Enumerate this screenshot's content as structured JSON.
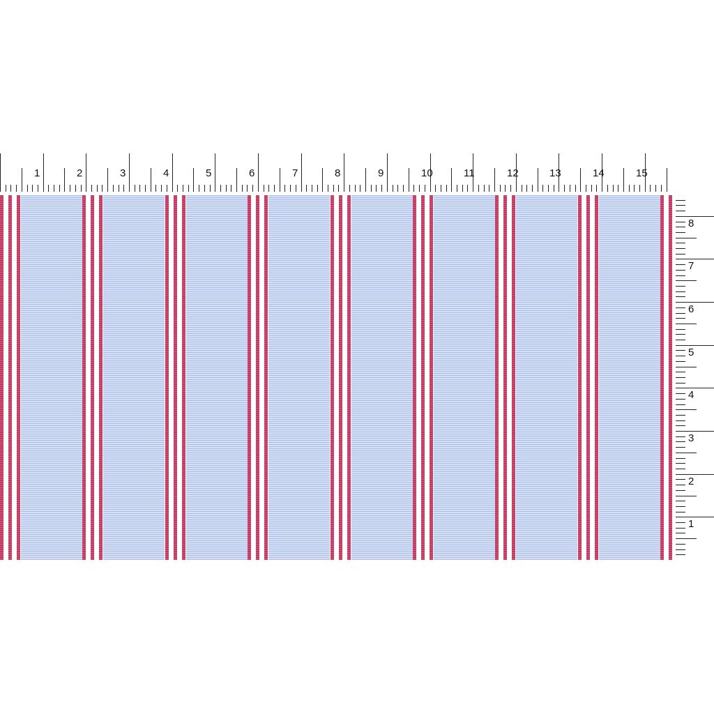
{
  "fabric": {
    "ground_color": "#d6e0f4",
    "ground_line_color": "#a9bde6",
    "stripe_color": "#c2375f",
    "background": "#ffffff",
    "repeats": 8,
    "stripes_per_group": 3
  },
  "top_ruler": {
    "labels": [
      "1",
      "2",
      "3",
      "4",
      "5",
      "6",
      "7",
      "8",
      "9",
      "10",
      "11",
      "12",
      "13",
      "14",
      "15"
    ],
    "subdivisions": 8
  },
  "right_ruler": {
    "labels": [
      "1",
      "2",
      "3",
      "4",
      "5",
      "6",
      "7",
      "8"
    ],
    "subdivisions": 8
  }
}
